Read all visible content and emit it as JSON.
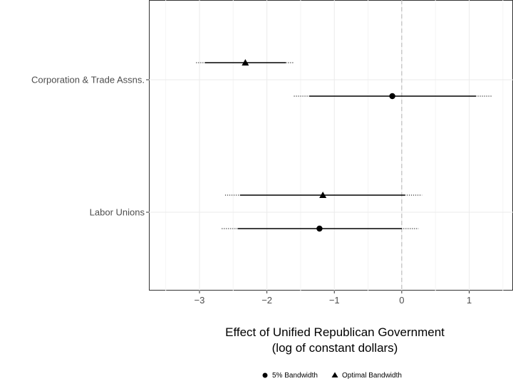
{
  "chart_data": {
    "type": "coefficient-plot",
    "title": "",
    "xlabel_lines": [
      "Effect of Unified Republican Government",
      "(log of constant dollars)"
    ],
    "ylabel": "",
    "xlim": [
      -3.75,
      1.65
    ],
    "xticks": [
      -3,
      -2,
      -1,
      0,
      1
    ],
    "xtick_labels": [
      "−3",
      "−2",
      "−1",
      "0",
      "1"
    ],
    "reference_line_x": 0,
    "grid": true,
    "legend_position": "bottom",
    "categories": [
      "Corporation & Trade Assns.",
      "Labor Unions"
    ],
    "series": [
      {
        "name": "5% Bandwidth",
        "marker": "circle",
        "points": [
          {
            "category": "Corporation & Trade Assns.",
            "estimate": -0.14,
            "ci_inner": [
              -1.37,
              1.1
            ],
            "ci_outer": [
              -1.6,
              1.34
            ]
          },
          {
            "category": "Labor Unions",
            "estimate": -1.22,
            "ci_inner": [
              -2.43,
              0.0
            ],
            "ci_outer": [
              -2.67,
              0.25
            ]
          }
        ]
      },
      {
        "name": "Optimal Bandwidth",
        "marker": "triangle",
        "points": [
          {
            "category": "Corporation & Trade Assns.",
            "estimate": -2.32,
            "ci_inner": [
              -2.92,
              -1.72
            ],
            "ci_outer": [
              -3.05,
              -1.6
            ]
          },
          {
            "category": "Labor Unions",
            "estimate": -1.17,
            "ci_inner": [
              -2.4,
              0.05
            ],
            "ci_outer": [
              -2.62,
              0.3
            ]
          }
        ]
      }
    ]
  }
}
